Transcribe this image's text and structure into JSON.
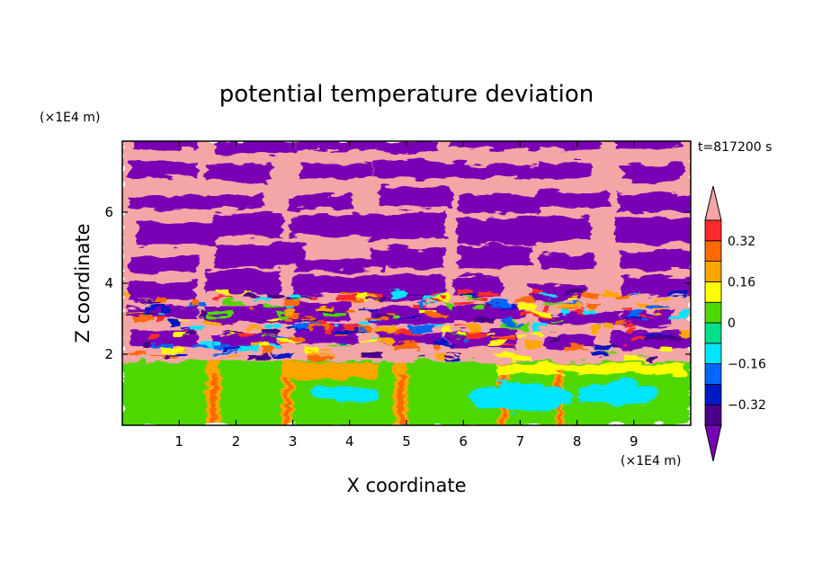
{
  "chart_data": {
    "type": "heatmap",
    "title": "potential temperature deviation",
    "xlabel": "X coordinate",
    "ylabel": "Z coordinate",
    "x_unit": "(×1E4 m)",
    "y_unit": "(×1E4 m)",
    "time_label": "t=817200 s",
    "xlim": [
      0,
      10
    ],
    "ylim": [
      0,
      8
    ],
    "x_ticks": [
      1,
      2,
      3,
      4,
      5,
      6,
      7,
      8,
      9
    ],
    "y_ticks": [
      2,
      4,
      6
    ],
    "x_tick_labels": [
      "1",
      "2",
      "3",
      "4",
      "5",
      "6",
      "7",
      "8",
      "9"
    ],
    "y_tick_labels": [
      "2",
      "4",
      "6"
    ],
    "colorbar": {
      "levels": [
        -0.4,
        -0.32,
        -0.24,
        -0.16,
        -0.08,
        0,
        0.08,
        0.16,
        0.24,
        0.32,
        0.4
      ],
      "labeled_ticks": [
        0.32,
        0.16,
        0,
        -0.16,
        -0.32
      ],
      "tick_labels": [
        "0.32",
        "0.16",
        "0",
        "−0.16",
        "−0.32"
      ],
      "colors": [
        "#7a00b5",
        "#4a008a",
        "#0019c6",
        "#0066ff",
        "#00e5ff",
        "#00e08a",
        "#4fd800",
        "#ffff00",
        "#ffa500",
        "#ff6a00",
        "#ff2a2a",
        "#f4a6a6"
      ],
      "extend": "both"
    },
    "description_rows": [
      {
        "z_range": [
          5.0,
          8.0
        ],
        "pattern": "alternating bands",
        "values": [
          0.4,
          -0.4
        ]
      },
      {
        "z_range": [
          3.0,
          5.0
        ],
        "pattern": "alternating bands with turbulent edges",
        "values": [
          0.4,
          -0.4,
          0.2,
          -0.3
        ]
      },
      {
        "z_range": [
          1.8,
          3.0
        ],
        "pattern": "turbulent mixed",
        "values": [
          0.4,
          -0.4,
          0.3,
          -0.2,
          0.1
        ]
      },
      {
        "z_range": [
          0.0,
          1.8
        ],
        "pattern": "convective boundary layer",
        "values": [
          0.0,
          0.08,
          -0.08,
          -0.16,
          0.16,
          0.24
        ]
      }
    ]
  }
}
